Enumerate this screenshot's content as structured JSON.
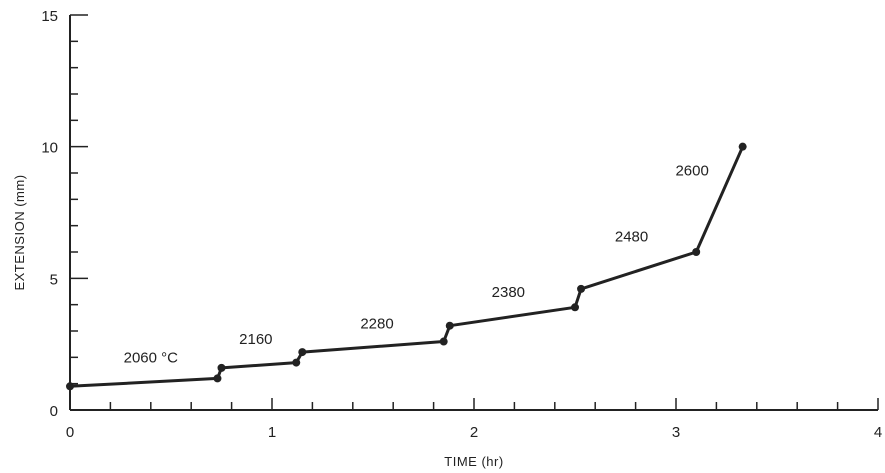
{
  "chart_data": {
    "type": "line",
    "xlabel": "TIME (hr)",
    "ylabel": "EXTENSION (mm)",
    "xlim": [
      0,
      4
    ],
    "ylim": [
      0,
      15
    ],
    "xticks": [
      "0",
      "1",
      "2",
      "3",
      "4"
    ],
    "yticks": [
      "0",
      "5",
      "10",
      "15"
    ],
    "grid": false,
    "series": [
      {
        "points": [
          {
            "x": 0.0,
            "y": 0.9
          },
          {
            "x": 0.73,
            "y": 1.2
          },
          {
            "x": 0.75,
            "y": 1.6
          },
          {
            "x": 1.12,
            "y": 1.8
          },
          {
            "x": 1.15,
            "y": 2.2
          },
          {
            "x": 1.85,
            "y": 2.6
          },
          {
            "x": 1.88,
            "y": 3.2
          },
          {
            "x": 2.5,
            "y": 3.9
          },
          {
            "x": 2.53,
            "y": 4.6
          },
          {
            "x": 3.1,
            "y": 6.0
          },
          {
            "x": 3.33,
            "y": 10.0
          }
        ]
      }
    ],
    "annotations": [
      {
        "text": "2060 °C",
        "x": 0.4,
        "y": 1.8
      },
      {
        "text": "2160",
        "x": 0.92,
        "y": 2.5
      },
      {
        "text": "2280",
        "x": 1.52,
        "y": 3.1
      },
      {
        "text": "2380",
        "x": 2.17,
        "y": 4.3
      },
      {
        "text": "2480",
        "x": 2.78,
        "y": 6.4
      },
      {
        "text": "2600",
        "x": 3.08,
        "y": 8.9
      }
    ]
  }
}
